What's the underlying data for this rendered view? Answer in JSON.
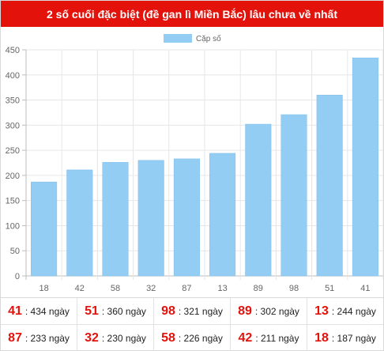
{
  "header": {
    "title": "2 số cuối đặc biệt (đề gan lì Miền Bắc) lâu chưa về nhất"
  },
  "chart_data": {
    "type": "bar",
    "categories": [
      "18",
      "42",
      "58",
      "32",
      "87",
      "13",
      "89",
      "98",
      "51",
      "41"
    ],
    "series": [
      {
        "name": "Cặp số",
        "values": [
          187,
          211,
          226,
          230,
          233,
          244,
          302,
          321,
          360,
          434
        ],
        "color": "#94cdf3"
      }
    ],
    "yticks": [
      0,
      50,
      100,
      150,
      200,
      250,
      300,
      350,
      400,
      450
    ],
    "ylim": [
      0,
      450
    ],
    "grid": true,
    "legend_position": "top-center"
  },
  "stats": {
    "rows": [
      [
        {
          "num": "41",
          "days": ": 434 ngày"
        },
        {
          "num": "51",
          "days": ": 360 ngày"
        },
        {
          "num": "98",
          "days": ": 321 ngày"
        },
        {
          "num": "89",
          "days": ": 302 ngày"
        },
        {
          "num": "13",
          "days": ": 244 ngày"
        }
      ],
      [
        {
          "num": "87",
          "days": ": 233 ngày"
        },
        {
          "num": "32",
          "days": ": 230 ngày"
        },
        {
          "num": "58",
          "days": ": 226 ngày"
        },
        {
          "num": "42",
          "days": ": 211 ngày"
        },
        {
          "num": "18",
          "days": ": 187 ngày"
        }
      ]
    ]
  }
}
